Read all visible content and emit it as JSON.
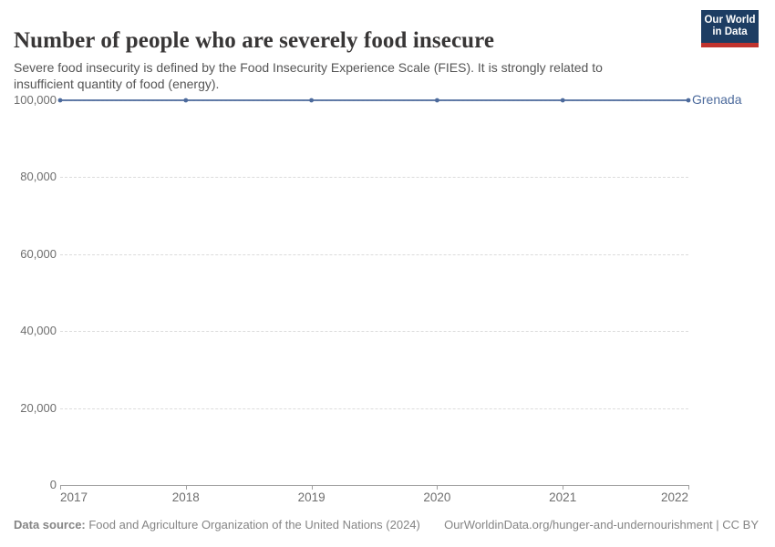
{
  "header": {
    "title": "Number of people who are severely food insecure",
    "subtitle": "Severe food insecurity is defined by the Food Insecurity Experience Scale (FIES). It is strongly related to insufficient quantity of food (energy).",
    "logo": {
      "line1": "Our World",
      "line2": "in Data",
      "bg_color": "#1d3d63",
      "bar_color": "#c0332e"
    }
  },
  "chart_data": {
    "type": "line",
    "title": "Number of people who are severely food insecure",
    "xlabel": "",
    "ylabel": "",
    "x": [
      2017,
      2018,
      2019,
      2020,
      2021,
      2022
    ],
    "series": [
      {
        "name": "Grenada",
        "color": "#4c6a9c",
        "values": [
          100000,
          100000,
          100000,
          100000,
          100000,
          100000
        ]
      }
    ],
    "x_ticks": [
      2017,
      2018,
      2019,
      2020,
      2021,
      2022
    ],
    "y_ticks": [
      0,
      20000,
      40000,
      60000,
      80000,
      100000
    ],
    "y_tick_labels": [
      "0",
      "20,000",
      "40,000",
      "60,000",
      "80,000",
      "100,000"
    ],
    "xlim": [
      2017,
      2022
    ],
    "ylim": [
      0,
      100000
    ],
    "grid": "horizontal-dashed",
    "legend_position": "end-of-line-label",
    "marker": "dot"
  },
  "colors": {
    "series": "#4c6a9c",
    "grid": "#dcdcdc",
    "axis": "#a0a0a0",
    "tick_label": "#6e6e6e",
    "title": "#383636",
    "subtitle": "#555555",
    "footer": "#858585"
  },
  "footer": {
    "source_label": "Data source:",
    "source_value": " Food and Agriculture Organization of the United Nations (2024)",
    "link": "OurWorldinData.org/hunger-and-undernourishment | CC BY"
  }
}
